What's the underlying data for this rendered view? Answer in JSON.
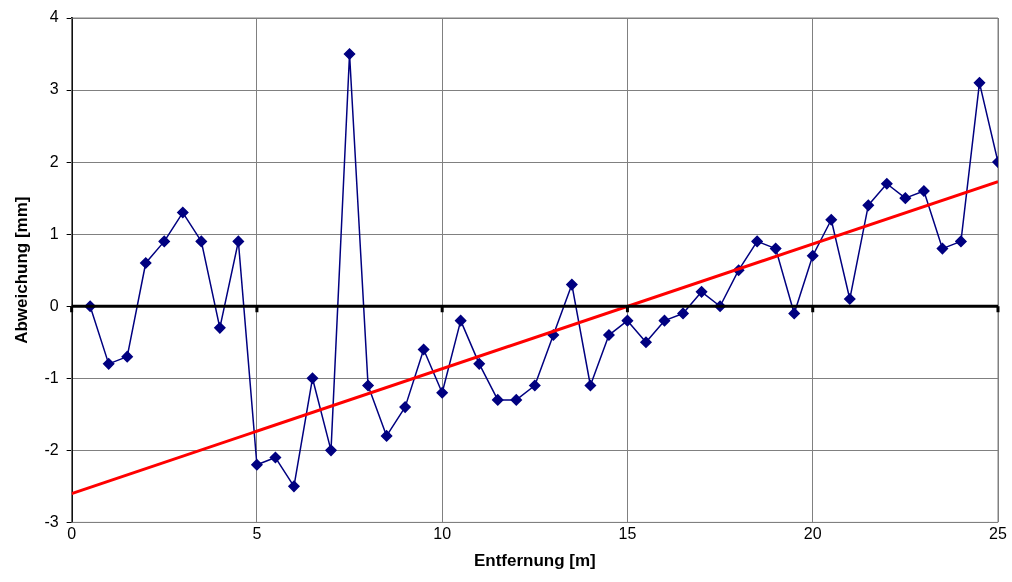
{
  "chart_data": {
    "type": "line",
    "xlabel": "Entfernung [m]",
    "ylabel": "Abweichung [mm]",
    "xlim": [
      0,
      25
    ],
    "xticks": [
      0,
      5,
      10,
      15,
      20,
      25
    ],
    "ylim": [
      -3,
      4
    ],
    "yticks": [
      -3,
      -2,
      -1,
      0,
      1,
      2,
      3,
      4
    ],
    "grid": true,
    "legend": false,
    "marker": "diamond",
    "line_style": "solid",
    "ref_lines": [
      {
        "axis": "y",
        "value": 0,
        "color": "#000000"
      }
    ],
    "series": [
      {
        "color": "#000080",
        "x": [
          0.5,
          1,
          1.5,
          2,
          2.5,
          3,
          3.5,
          4,
          4.5,
          5,
          5.5,
          6,
          6.5,
          7,
          7.5,
          8,
          8.5,
          9,
          9.5,
          10,
          10.5,
          11,
          11.5,
          12,
          12.5,
          13,
          13.5,
          14,
          14.5,
          15,
          15.5,
          16,
          16.5,
          17,
          17.5,
          18,
          18.5,
          19,
          19.5,
          20,
          20.5,
          21,
          21.5,
          22,
          22.5,
          23,
          23.5,
          24,
          24.5,
          25
        ],
        "values": [
          0,
          -0.8,
          -0.7,
          0.6,
          0.9,
          1.3,
          0.9,
          -0.3,
          0.9,
          -2.2,
          -2.1,
          -2.5,
          -1.0,
          -2.0,
          3.5,
          -1.1,
          -1.8,
          -1.4,
          -0.6,
          -1.2,
          -0.2,
          -0.8,
          -1.3,
          -1.3,
          -1.1,
          -0.4,
          0.3,
          -1.1,
          -0.4,
          -0.2,
          -0.5,
          -0.2,
          -0.1,
          0.2,
          0,
          0.5,
          0.9,
          0.8,
          -0.1,
          0.7,
          1.2,
          0.1,
          1.4,
          1.7,
          1.5,
          1.6,
          0.8,
          0.9,
          3.1,
          2.0
        ]
      },
      {
        "type": "line",
        "color": "#ff0000",
        "marker": "none",
        "x": [
          0,
          25
        ],
        "values": [
          -2.6,
          1.73
        ]
      }
    ]
  }
}
